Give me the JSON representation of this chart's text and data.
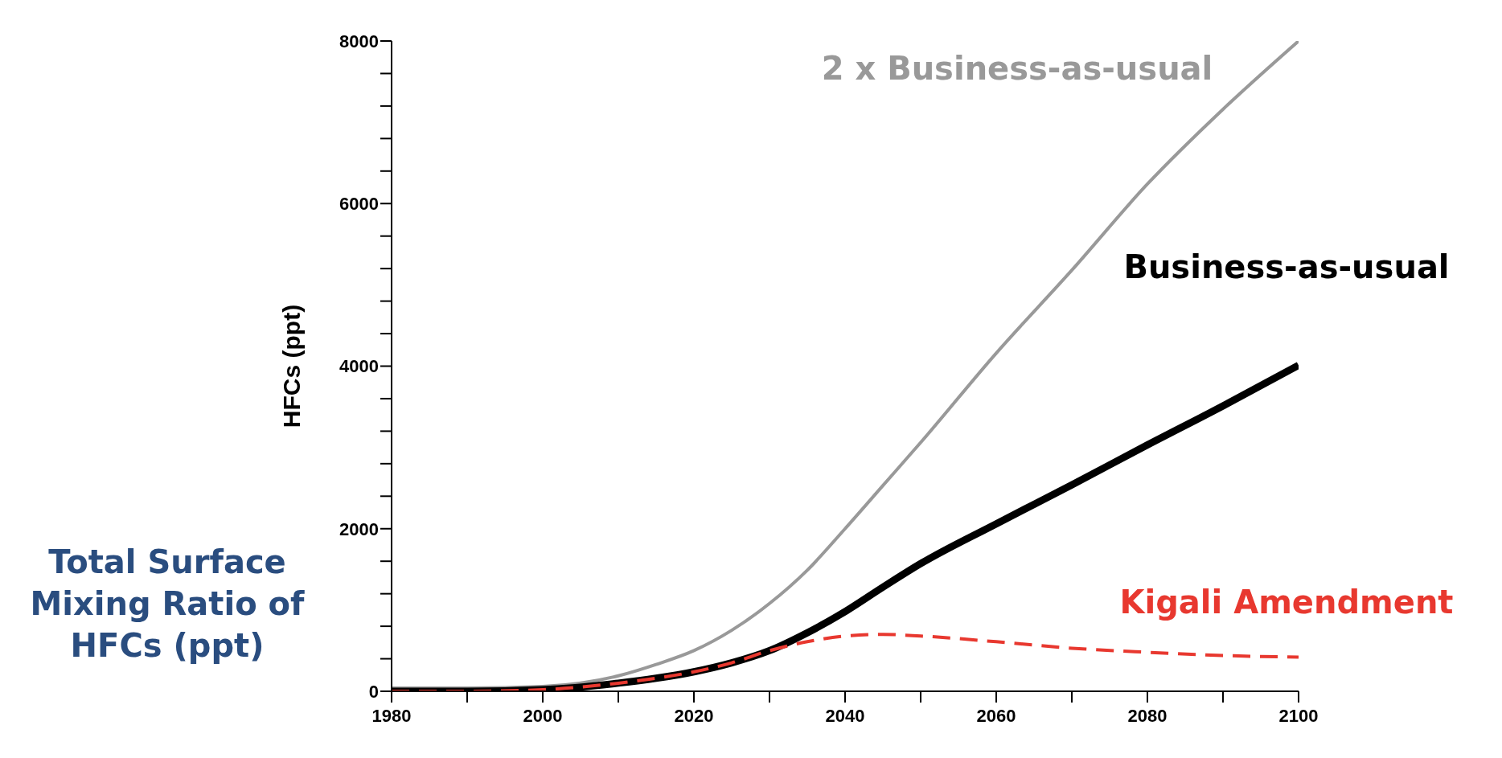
{
  "chart_data": {
    "type": "line",
    "ylabel": "HFCs (ppt)",
    "x": [
      1980,
      1990,
      2000,
      2010,
      2015,
      2020,
      2025,
      2030,
      2035,
      2040,
      2045,
      2050,
      2060,
      2070,
      2080,
      2090,
      2100
    ],
    "series": [
      {
        "name": "2 x Business-as-usual",
        "color": "#999999",
        "line_style": "solid",
        "values": [
          40,
          40,
          60,
          190,
          330,
          500,
          750,
          1080,
          1490,
          2000,
          2530,
          3060,
          4160,
          5180,
          6240,
          7160,
          8000
        ]
      },
      {
        "name": "Business-as-usual",
        "color": "#000000",
        "line_style": "solid",
        "values": [
          0,
          0,
          20,
          100,
          160,
          240,
          350,
          500,
          720,
          980,
          1280,
          1570,
          2060,
          2540,
          3030,
          3510,
          4010
        ]
      },
      {
        "name": "Kigali Amendment",
        "color": "#e8382f",
        "line_style": "dashed",
        "values": [
          0,
          0,
          20,
          100,
          160,
          240,
          350,
          500,
          610,
          680,
          700,
          680,
          610,
          530,
          480,
          440,
          420
        ]
      }
    ],
    "xlim": [
      1980,
      2100
    ],
    "xticks": [
      1980,
      {
        "value": 1990,
        "label": null
      },
      2000,
      {
        "value": 2010,
        "label": null
      },
      2020,
      {
        "value": 2030,
        "label": null
      },
      2040,
      {
        "value": 2050,
        "label": null
      },
      2060,
      {
        "value": 2070,
        "label": null
      },
      2080,
      {
        "value": 2090,
        "label": null
      },
      2100
    ],
    "ylim": [
      0,
      8000
    ],
    "yticks": [
      0,
      {
        "value": 400,
        "label": null
      },
      {
        "value": 800,
        "label": null
      },
      {
        "value": 1200,
        "label": null
      },
      {
        "value": 1600,
        "label": null
      },
      2000,
      {
        "value": 2400,
        "label": null
      },
      {
        "value": 2800,
        "label": null
      },
      {
        "value": 3200,
        "label": null
      },
      {
        "value": 3600,
        "label": null
      },
      4000,
      {
        "value": 4400,
        "label": null
      },
      {
        "value": 4800,
        "label": null
      },
      {
        "value": 5200,
        "label": null
      },
      {
        "value": 5600,
        "label": null
      },
      6000,
      {
        "value": 6400,
        "label": null
      },
      {
        "value": 6800,
        "label": null
      },
      {
        "value": 7200,
        "label": null
      },
      {
        "value": 7600,
        "label": null
      },
      8000
    ],
    "annotations": [
      "Total Surface Mixing Ratio of HFCs (ppt)"
    ]
  }
}
